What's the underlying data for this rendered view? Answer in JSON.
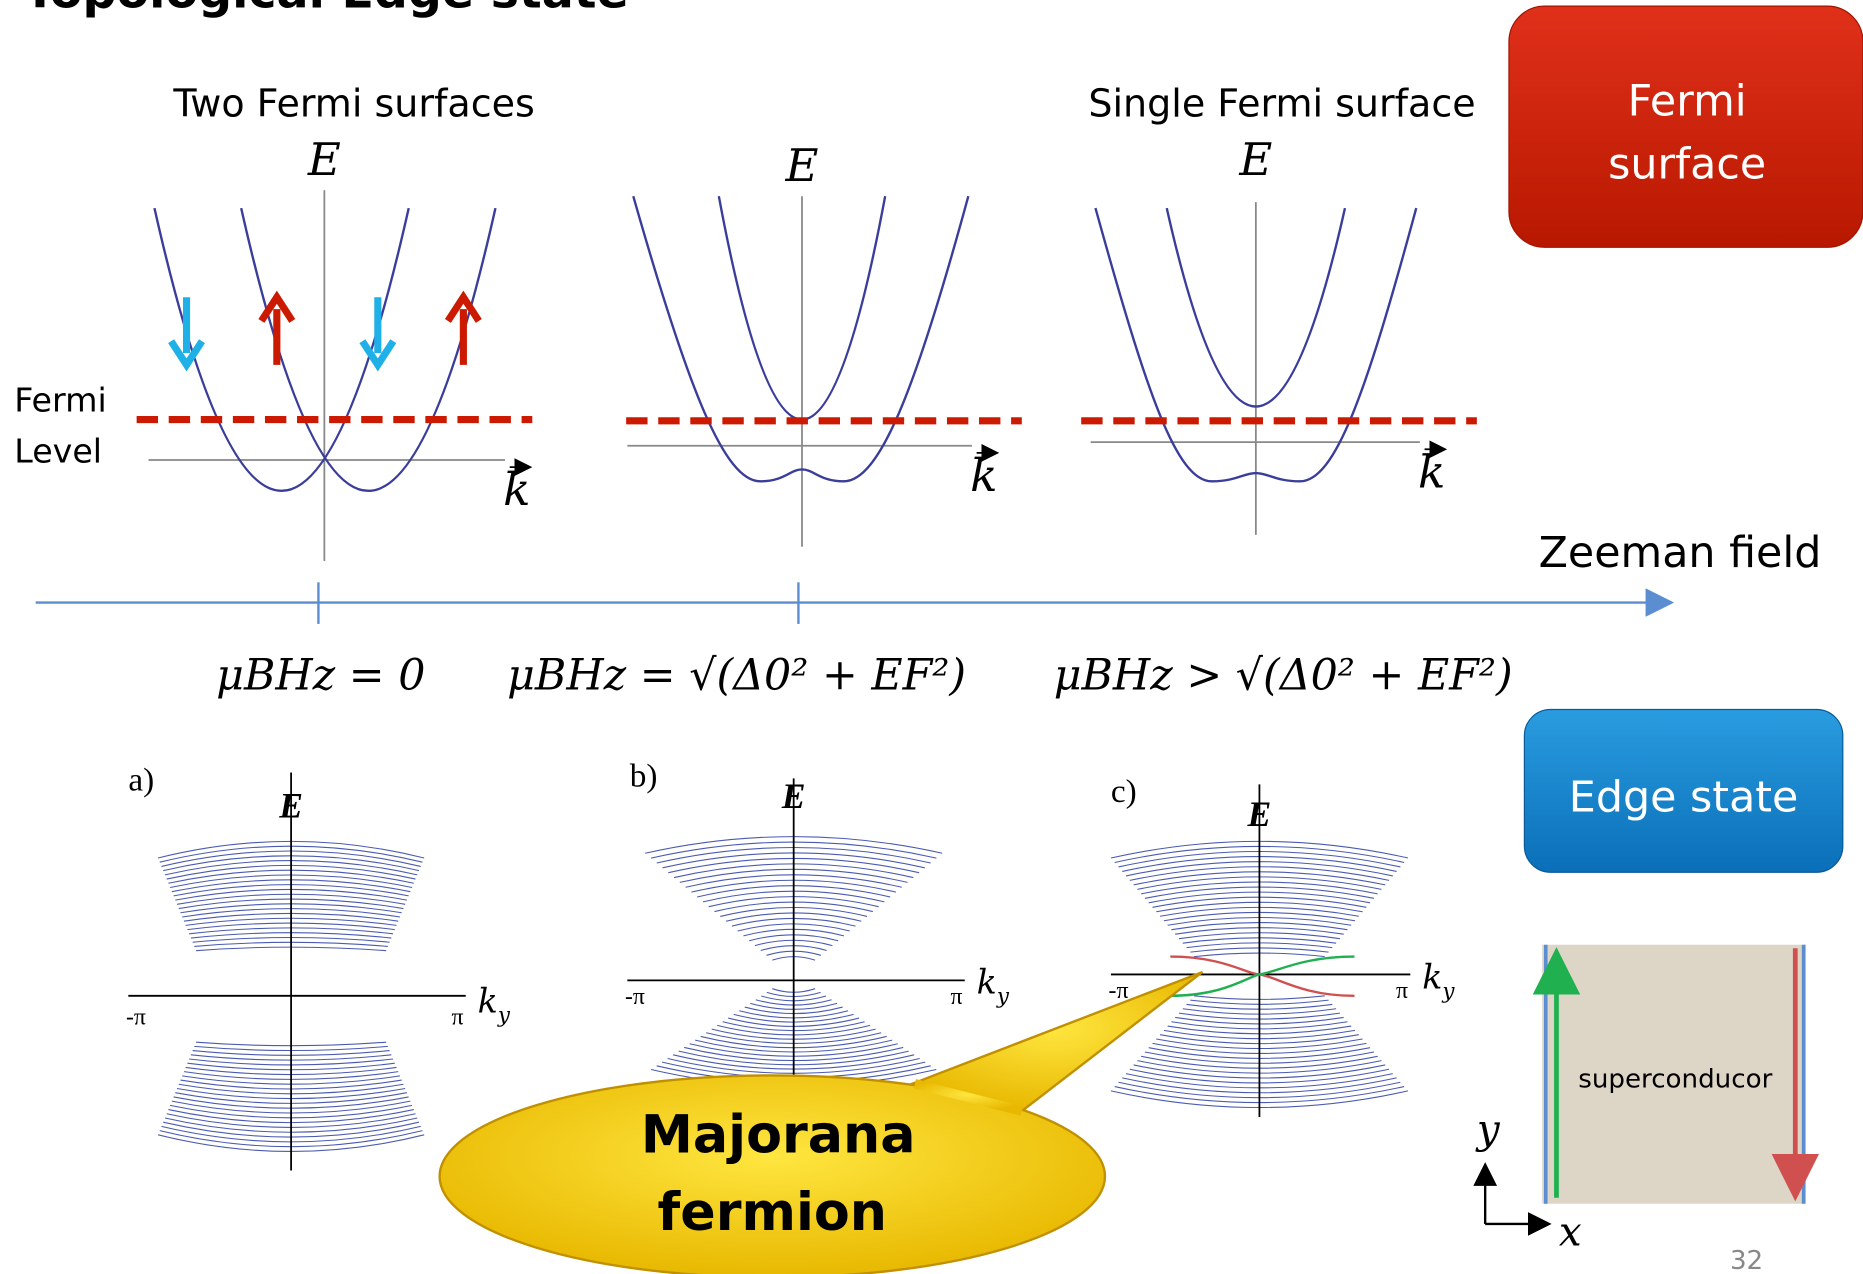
{
  "header": {
    "title": "Topological Edge state"
  },
  "buttons": [
    {
      "lines": [
        "Fermi",
        "surface"
      ]
    },
    {
      "lines": [
        "Edge state"
      ]
    }
  ],
  "fermi_level": {
    "lines": [
      "Fermi",
      "Level"
    ]
  },
  "top_panels": [
    {
      "caption": "Two Fermi surfaces",
      "energy_label": "E",
      "momentum_label": "k"
    },
    {
      "energy_label": "E",
      "momentum_label": "k"
    },
    {
      "caption": "Single Fermi surface",
      "energy_label": "E",
      "momentum_label": "k"
    }
  ],
  "zeeman_axis": {
    "label": "Zeeman field",
    "conditions": [
      "μBHz = 0",
      "μBHz = √(Δ0² + EF²)",
      "μBHz > √(Δ0² + EF²)"
    ]
  },
  "band_panels": [
    {
      "tag": "a)",
      "energy_label": "E",
      "left_tick": "-π",
      "right_tick": "π",
      "momentum_label": "k",
      "momentum_subscript": "y"
    },
    {
      "tag": "b)",
      "energy_label": "E",
      "left_tick": "-π",
      "right_tick": "π",
      "momentum_label": "k",
      "momentum_subscript": "y"
    },
    {
      "tag": "c)",
      "energy_label": "E",
      "left_tick": "-π",
      "right_tick": "π",
      "momentum_label": "k",
      "momentum_subscript": "y"
    }
  ],
  "callout": {
    "lines": [
      "Majorana",
      "fermion"
    ]
  },
  "sample": {
    "label": "superconducor",
    "y_axis": "y",
    "x_axis": "x"
  },
  "page_number": "32"
}
